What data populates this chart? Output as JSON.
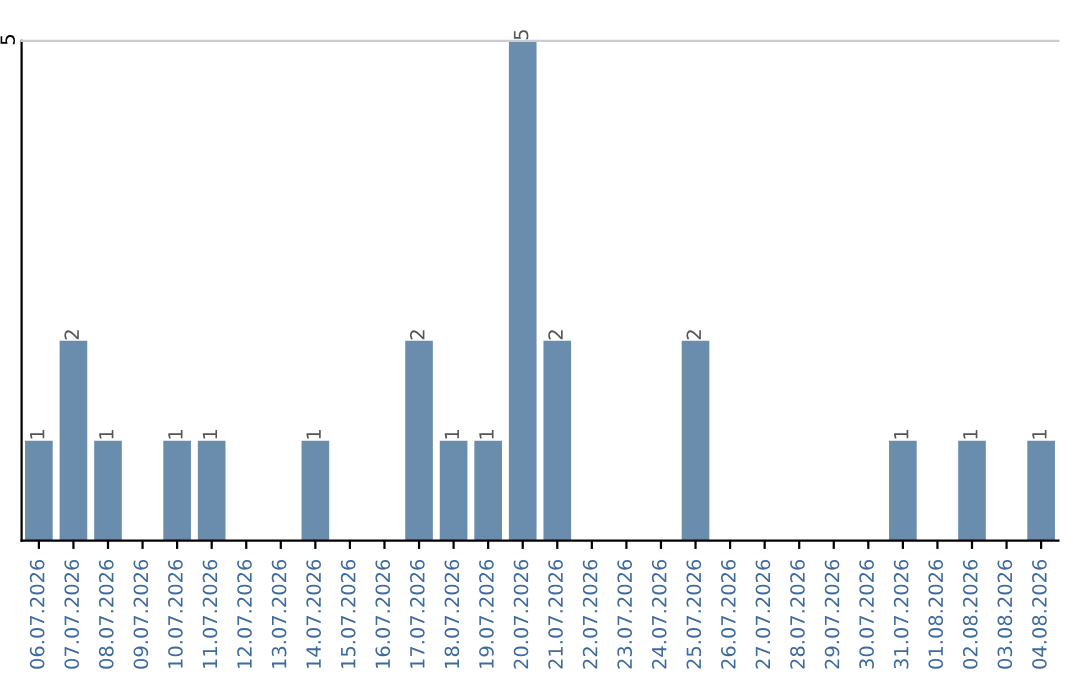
{
  "chart_data": {
    "type": "bar",
    "categories": [
      "06.07.2026",
      "07.07.2026",
      "08.07.2026",
      "09.07.2026",
      "10.07.2026",
      "11.07.2026",
      "12.07.2026",
      "13.07.2026",
      "14.07.2026",
      "15.07.2026",
      "16.07.2026",
      "17.07.2026",
      "18.07.2026",
      "19.07.2026",
      "20.07.2026",
      "21.07.2026",
      "22.07.2026",
      "23.07.2026",
      "24.07.2026",
      "25.07.2026",
      "26.07.2026",
      "27.07.2026",
      "28.07.2026",
      "29.07.2026",
      "30.07.2026",
      "31.07.2026",
      "01.08.2026",
      "02.08.2026",
      "03.08.2026",
      "04.08.2026"
    ],
    "values": [
      1,
      2,
      1,
      0,
      1,
      1,
      0,
      0,
      1,
      0,
      0,
      2,
      1,
      1,
      5,
      2,
      0,
      0,
      0,
      2,
      0,
      0,
      0,
      0,
      0,
      1,
      0,
      1,
      0,
      1
    ],
    "value_labels": [
      "1",
      "2",
      "1",
      null,
      "1",
      "1",
      null,
      null,
      "1",
      null,
      null,
      "2",
      "1",
      "1",
      "5",
      "2",
      null,
      null,
      null,
      "2",
      null,
      null,
      null,
      null,
      null,
      "1",
      null,
      "1",
      null,
      "1"
    ],
    "color": "#6a8cad",
    "ylim": [
      0,
      5
    ],
    "yticks": [
      5
    ],
    "legend": false
  }
}
